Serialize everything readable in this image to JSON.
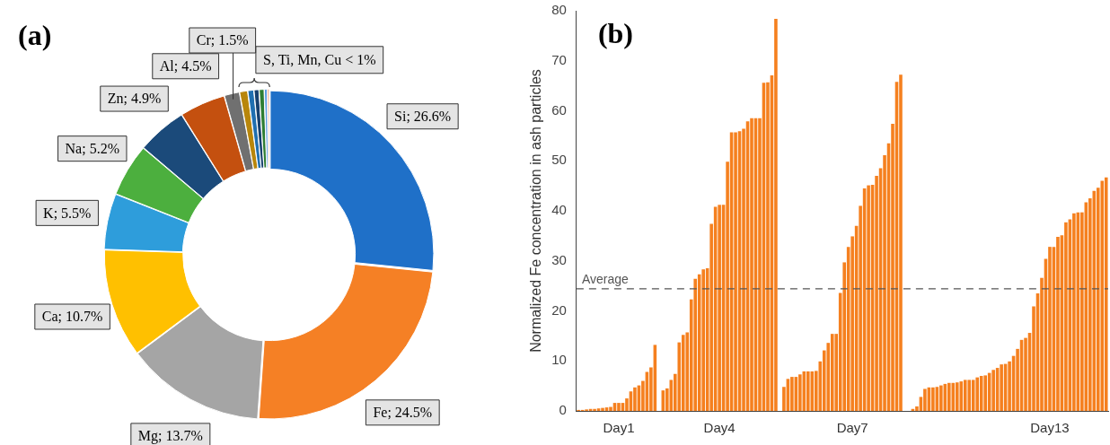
{
  "chart_data": [
    {
      "type": "donut",
      "title": "(a)",
      "categories": [
        "Si; 26.6%",
        "Fe; 24.5%",
        "Mg; 13.7%",
        "Ca; 10.7%",
        "K; 5.5%",
        "Na; 5.2%",
        "Zn; 4.9%",
        "Al; 4.5%",
        "Cr; 1.5%",
        null,
        null,
        null,
        null,
        null,
        null
      ],
      "values": [
        26.6,
        24.5,
        13.7,
        10.7,
        5.5,
        5.2,
        4.9,
        4.5,
        1.5,
        0.8,
        0.6,
        0.5,
        0.5,
        0.3,
        0.2
      ],
      "colors": [
        "#1f70c8",
        "#f58025",
        "#a5a5a5",
        "#ffc000",
        "#2e9ddb",
        "#4caf3e",
        "#1b4a7a",
        "#c4500f",
        "#707070",
        "#b8860b",
        "#1f6fb0",
        "#16406e",
        "#2e7d32",
        "#5b9be0",
        "#f08a5a"
      ],
      "annotations": [
        "S, Ti, Mn, Cu < 1%"
      ]
    },
    {
      "type": "bar",
      "title": "(b)",
      "ylabel": "Normalized Fe concentration in ash particles",
      "color": "#f5801f",
      "categories": [
        null,
        null,
        null,
        null,
        null,
        null,
        null,
        null,
        null,
        null,
        "Day1",
        null,
        null,
        null,
        null,
        null,
        null,
        null,
        null,
        null,
        null,
        null,
        null,
        null,
        null,
        null,
        null,
        null,
        null,
        null,
        null,
        null,
        null,
        null,
        null,
        "Day4",
        null,
        null,
        null,
        null,
        null,
        null,
        null,
        null,
        null,
        null,
        null,
        null,
        null,
        null,
        null,
        null,
        null,
        null,
        null,
        null,
        null,
        null,
        null,
        null,
        null,
        null,
        null,
        null,
        null,
        null,
        null,
        null,
        "Day7",
        null,
        null,
        null,
        null,
        null,
        null,
        null,
        null,
        null,
        null,
        null,
        null,
        null,
        null,
        null,
        null,
        null,
        null,
        null,
        null,
        null,
        null,
        null,
        null,
        null,
        null,
        null,
        null,
        null,
        null,
        null,
        null,
        null,
        null,
        null,
        null,
        null,
        null,
        null,
        null,
        null,
        null,
        null,
        null,
        null,
        null,
        null,
        null,
        "Day13",
        null,
        null,
        null,
        null,
        null,
        null,
        null,
        null,
        null,
        null,
        null,
        null,
        null,
        null
      ],
      "values": [
        0.2,
        0.2,
        0.3,
        0.4,
        0.4,
        0.5,
        0.6,
        0.7,
        0.8,
        1.6,
        1.6,
        1.6,
        2.5,
        3.9,
        4.7,
        5.1,
        6.0,
        7.8,
        8.7,
        13.2,
        null,
        4.1,
        4.5,
        6.2,
        7.4,
        13.7,
        15.2,
        15.7,
        22.3,
        26.4,
        27.3,
        28.3,
        28.5,
        37.4,
        40.8,
        41.2,
        41.2,
        49.8,
        55.7,
        55.7,
        55.9,
        56.4,
        57.9,
        58.5,
        58.5,
        58.5,
        65.6,
        65.7,
        67.1,
        78.4,
        null,
        4.8,
        6.4,
        6.8,
        6.8,
        7.3,
        7.9,
        7.9,
        7.9,
        8.0,
        9.9,
        12.1,
        13.6,
        15.4,
        15.4,
        23.6,
        29.7,
        32.8,
        34.9,
        37.0,
        41.0,
        44.5,
        45.1,
        45.2,
        47.0,
        48.5,
        51.1,
        53.5,
        57.4,
        65.8,
        67.2,
        null,
        null,
        0.4,
        0.9,
        2.8,
        4.4,
        4.7,
        4.7,
        4.8,
        5.1,
        5.4,
        5.6,
        5.6,
        5.7,
        5.9,
        6.2,
        6.2,
        6.2,
        6.7,
        7.0,
        7.1,
        7.6,
        8.2,
        8.6,
        9.3,
        9.4,
        9.9,
        11.0,
        12.4,
        14.2,
        14.6,
        15.6,
        20.9,
        23.5,
        26.6,
        30.4,
        32.8,
        32.8,
        34.8,
        35.1,
        37.7,
        38.3,
        39.5,
        39.7,
        39.7,
        41.7,
        42.5,
        44.0,
        44.6,
        46.0,
        46.7
      ],
      "ylim": [
        0,
        80
      ],
      "yticks": [
        0,
        10,
        20,
        30,
        40,
        50,
        60,
        70,
        80
      ],
      "ref_lines": [
        {
          "axis": "y",
          "value": 24.4,
          "label": "Average",
          "color": "#555555",
          "line_style": "dashed"
        }
      ]
    }
  ]
}
